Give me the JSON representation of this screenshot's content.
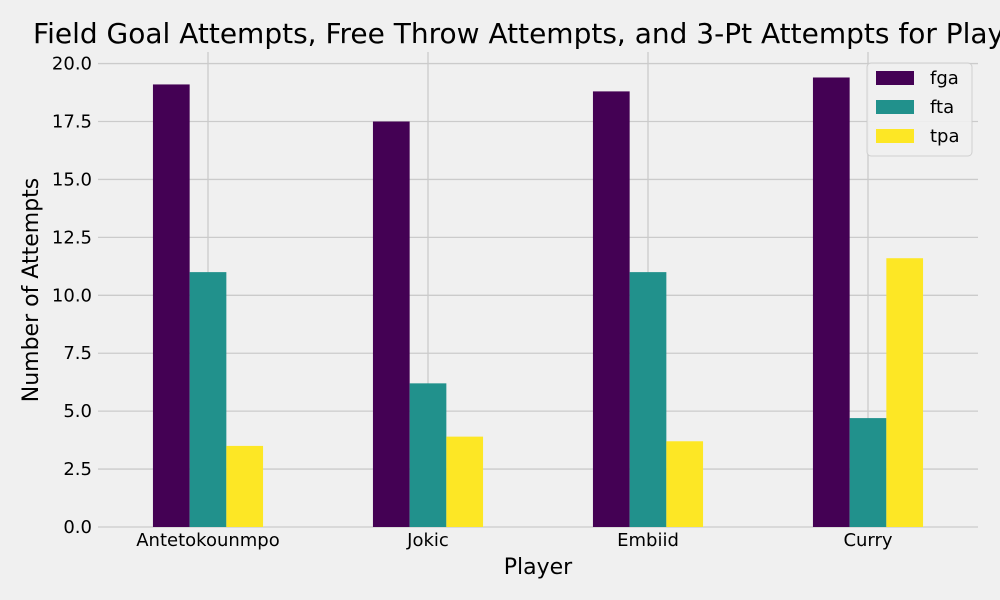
{
  "chart_data": {
    "type": "bar",
    "title": "Field Goal Attempts, Free Throw Attempts, and 3-Pt Attempts for Play",
    "xlabel": "Player",
    "ylabel": "Number of Attempts",
    "categories": [
      "Antetokounmpo",
      "Jokic",
      "Embiid",
      "Curry"
    ],
    "series": [
      {
        "name": "fga",
        "color": "#440154",
        "values": [
          19.1,
          17.5,
          18.8,
          19.4
        ]
      },
      {
        "name": "fta",
        "color": "#21918c",
        "values": [
          11.0,
          6.2,
          11.0,
          4.7
        ]
      },
      {
        "name": "tpa",
        "color": "#fde725",
        "values": [
          3.5,
          3.9,
          3.7,
          11.6
        ]
      }
    ],
    "ylim": [
      0,
      20.5
    ],
    "yticks": [
      "0.0",
      "2.5",
      "5.0",
      "7.5",
      "10.0",
      "12.5",
      "15.0",
      "17.5",
      "20.0"
    ],
    "grid": true,
    "legend_position": "top-right",
    "colors": {
      "background": "#f0f0f0",
      "grid": "#cbcbcb",
      "legend_bg": "#f0f0f0",
      "legend_border": "#cccccc"
    }
  }
}
